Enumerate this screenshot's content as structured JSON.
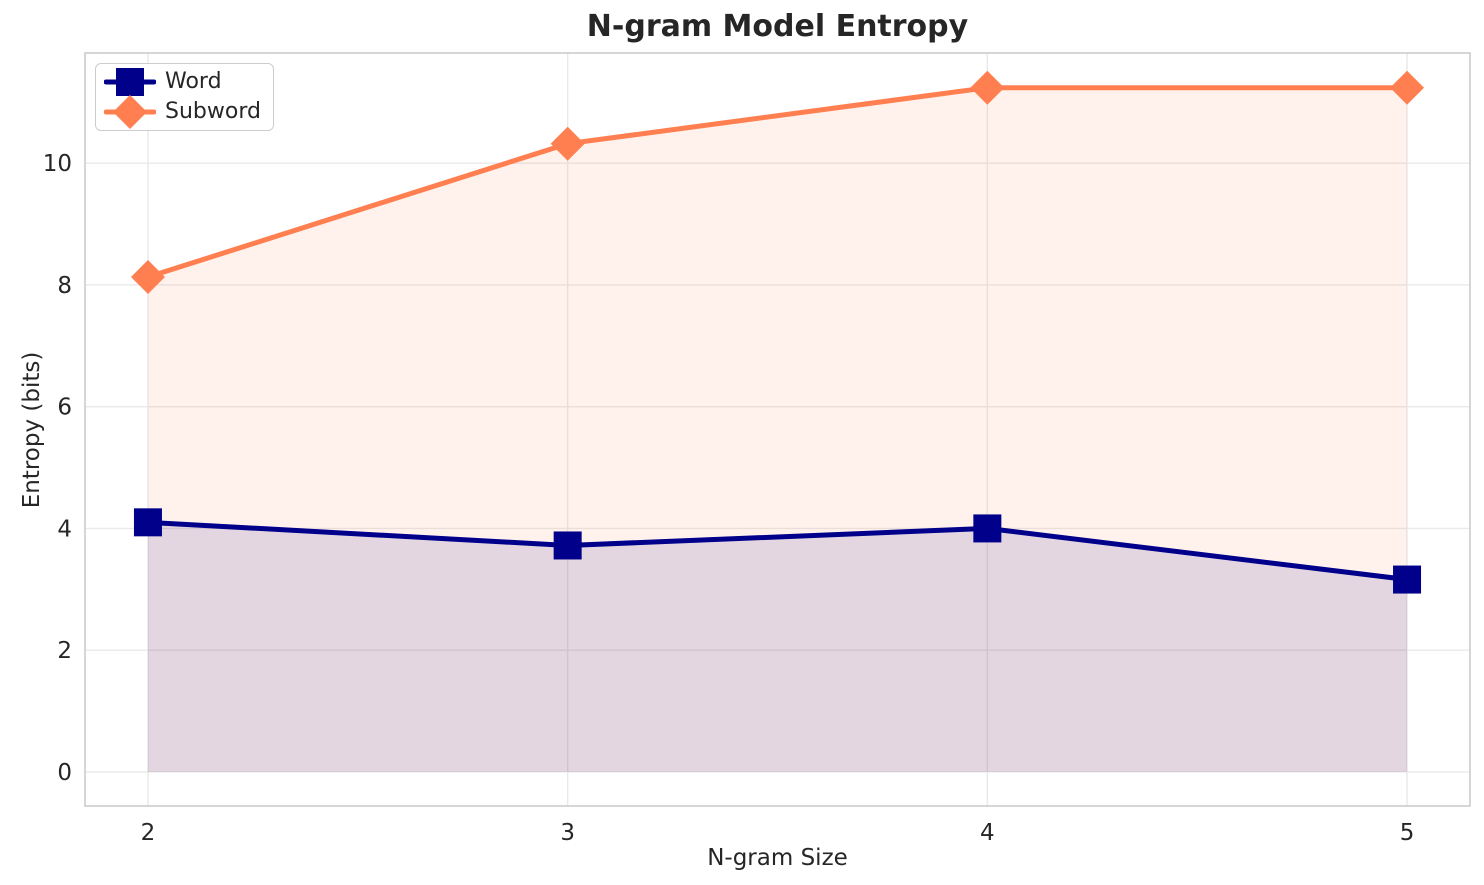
{
  "figure": {
    "title": "N-gram Model Entropy"
  },
  "chart_data": {
    "type": "line",
    "title": "N-gram Model Entropy",
    "xlabel": "N-gram Size",
    "ylabel": "Entropy (bits)",
    "x": [
      2,
      3,
      4,
      5
    ],
    "series": [
      {
        "name": "Word",
        "color": "#00008B",
        "marker": "square",
        "fill_alpha": 0.12,
        "values": [
          4.1,
          3.72,
          4.0,
          3.16
        ]
      },
      {
        "name": "Subword",
        "color": "#FF7F50",
        "marker": "diamond",
        "fill_alpha": 0.1,
        "values": [
          8.13,
          10.32,
          11.24,
          11.24
        ]
      }
    ],
    "fill_to_zero": true,
    "xticks": [
      2,
      3,
      4,
      5
    ],
    "yticks": [
      0,
      2,
      4,
      6,
      8,
      10
    ],
    "xlim": [
      1.85,
      5.15
    ],
    "ylim": [
      -0.56,
      11.81
    ],
    "grid": true,
    "grid_color": "#e9e9e9",
    "spine_color": "#cccccc",
    "text_color": "#262626",
    "legend": {
      "position": "upper-left",
      "entries": [
        "Word",
        "Subword"
      ]
    }
  }
}
